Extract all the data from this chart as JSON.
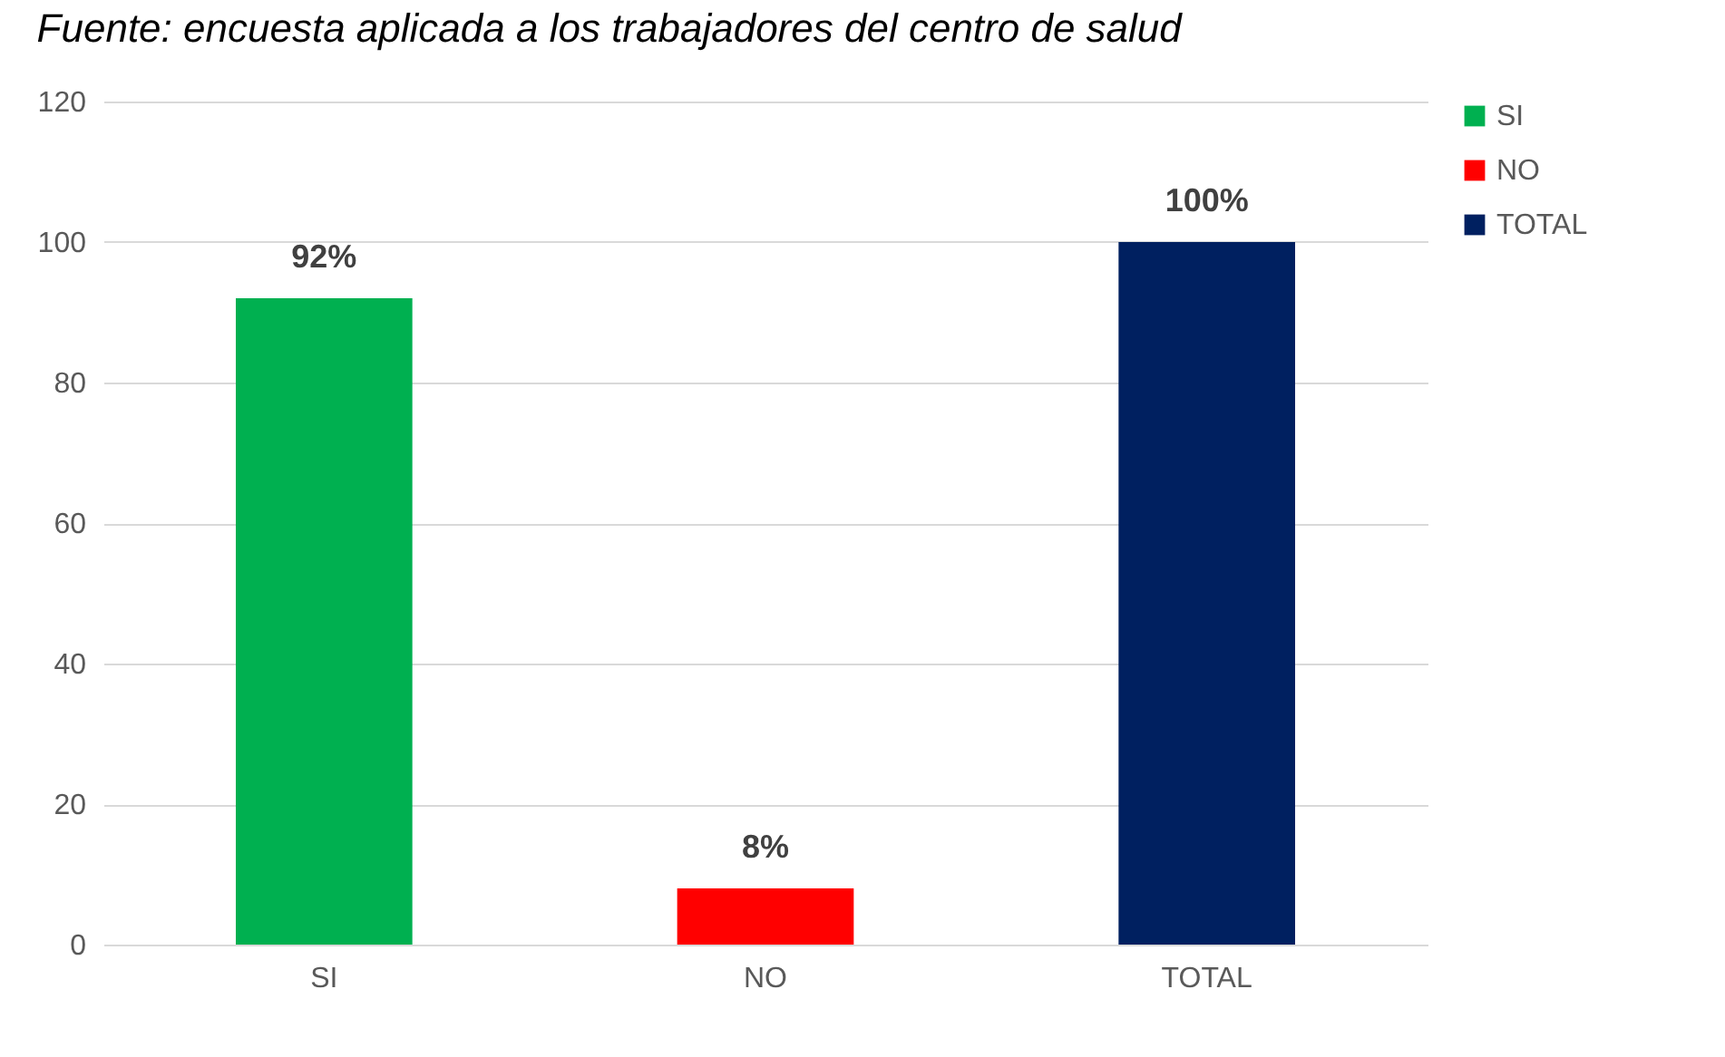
{
  "chart_data": {
    "type": "bar",
    "annotations": [
      "Fuente: encuesta aplicada a los trabajadores del centro de salud"
    ],
    "categories": [
      "SI",
      "NO",
      "TOTAL"
    ],
    "series": [
      {
        "name": "SI",
        "color": "#00b050",
        "values": [
          92,
          null,
          null
        ],
        "value_labels": [
          "92%",
          null,
          null
        ]
      },
      {
        "name": "NO",
        "color": "#ff0000",
        "values": [
          null,
          8,
          null
        ],
        "value_labels": [
          null,
          "8%",
          null
        ]
      },
      {
        "name": "TOTAL",
        "color": "#002060",
        "values": [
          null,
          null,
          100
        ],
        "value_labels": [
          null,
          null,
          "100%"
        ]
      }
    ],
    "ylim": [
      0,
      120
    ],
    "yticks": [
      0,
      20,
      40,
      60,
      80,
      100,
      120
    ],
    "grid": "y",
    "legend": "right"
  }
}
